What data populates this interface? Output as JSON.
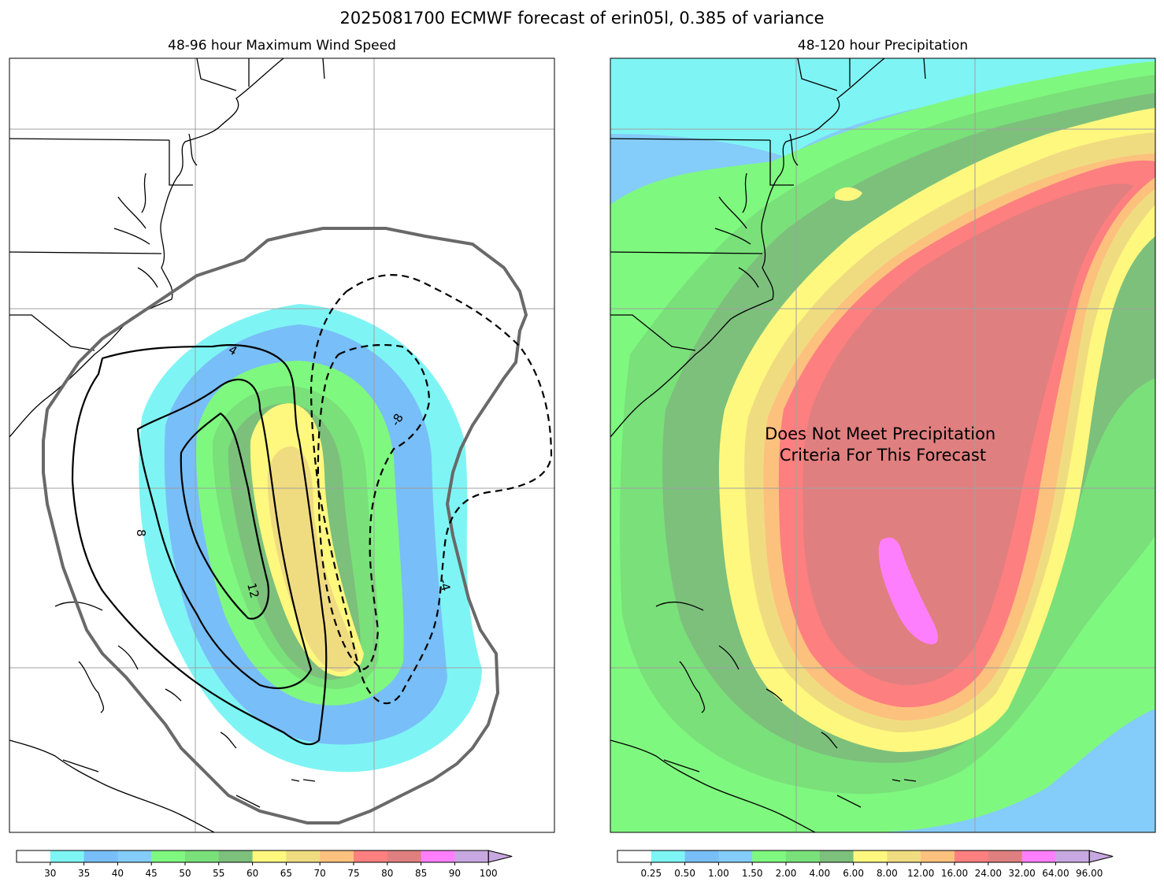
{
  "suptitle": "2025081700 ECMWF forecast of erin05l, 0.385 of variance",
  "chart_data": [
    {
      "type": "heatmap",
      "title": "48-96 hour Maximum Wind Speed",
      "colorbar": {
        "ticks": [
          "30",
          "35",
          "40",
          "45",
          "50",
          "55",
          "60",
          "65",
          "70",
          "75",
          "80",
          "85",
          "90",
          "100"
        ],
        "colors": [
          "#ffffff",
          "#7ff4f4",
          "#78bef8",
          "#84ccfa",
          "#7ff87f",
          "#7ae07a",
          "#7cc07c",
          "#fff87f",
          "#f0dc80",
          "#fdc17e",
          "#fe7f7f",
          "#e07f7f",
          "#fd7ffd",
          "#c8a8e0"
        ],
        "extend": "max"
      },
      "contour_labels": [
        "4",
        "8",
        "12",
        "-8",
        "-4"
      ],
      "gridlines": true,
      "coastlines": true
    },
    {
      "type": "heatmap",
      "title": "48-120 hour Precipitation",
      "colorbar": {
        "ticks": [
          "0.25",
          "0.50",
          "1.00",
          "1.50",
          "2.00",
          "4.00",
          "6.00",
          "8.00",
          "12.00",
          "16.00",
          "24.00",
          "32.00",
          "64.00",
          "96.00"
        ],
        "colors": [
          "#ffffff",
          "#7ff4f4",
          "#78bef8",
          "#84ccfa",
          "#7ff87f",
          "#7ae07a",
          "#7cc07c",
          "#fff87f",
          "#f0dc80",
          "#fdc17e",
          "#fe7f7f",
          "#e07f7f",
          "#fd7ffd",
          "#c8a8e0"
        ],
        "extend": "max"
      },
      "annotation": "Does Not Meet Precipitation\n Criteria For This Forecast",
      "gridlines": true,
      "coastlines": true
    }
  ],
  "colors": {
    "white": "#ffffff",
    "cyan": "#7ff4f4",
    "blue": "#78bef8",
    "lightblue": "#84ccfa",
    "green1": "#7ff87f",
    "green2": "#7ae07a",
    "green3": "#7cc07c",
    "yellow": "#fff87f",
    "tan": "#f0dc80",
    "orange": "#fdc17e",
    "red": "#fe7f7f",
    "rose": "#e07f7f",
    "magenta": "#fd7ffd",
    "lavender": "#c8a8e0",
    "gray_contour": "#696969",
    "grid": "#a0a0a0"
  }
}
